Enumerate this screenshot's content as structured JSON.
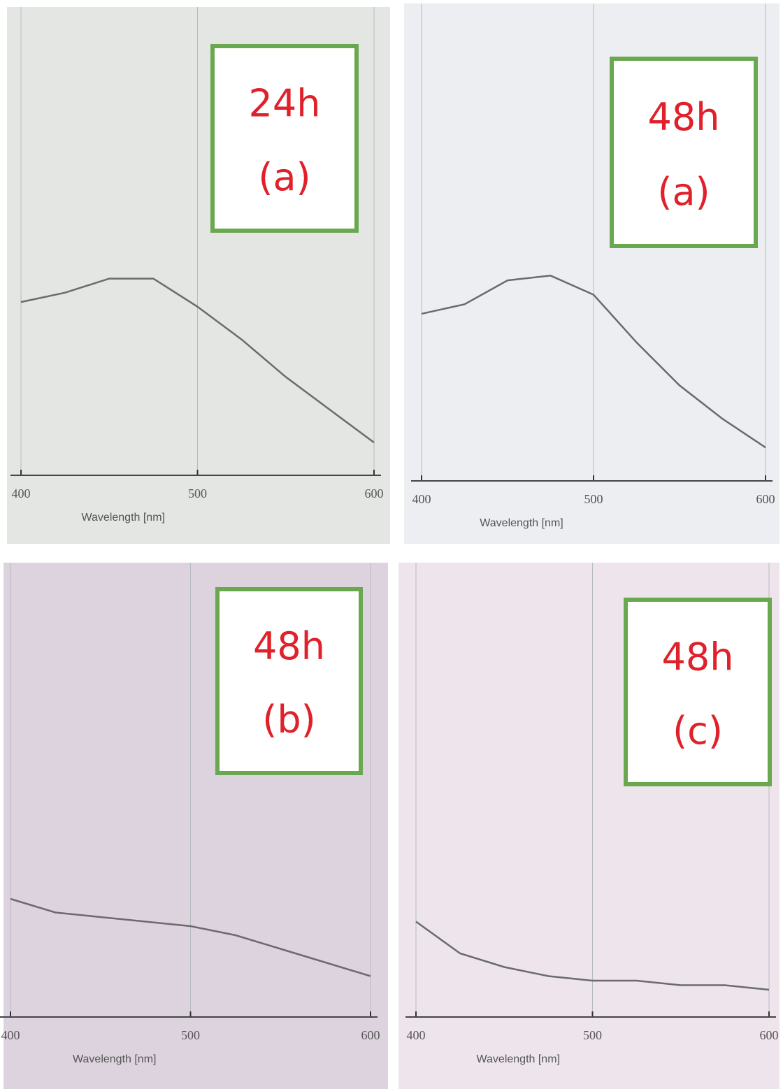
{
  "chart_data": [
    {
      "type": "line",
      "title": "24h",
      "subtitle": "(a)",
      "x_label": "Wavelength [nm]",
      "x": [
        400,
        425,
        450,
        475,
        500,
        525,
        550,
        575,
        600
      ],
      "series": [
        {
          "color": "#6b6b6b",
          "values": [
            0.37,
            0.39,
            0.42,
            0.42,
            0.36,
            0.29,
            0.21,
            0.14,
            0.07
          ]
        }
      ],
      "xlim": [
        400,
        600
      ],
      "xticks": [
        400,
        500,
        600
      ],
      "ylim": [
        0,
        1
      ],
      "grid": true
    },
    {
      "type": "line",
      "title": "48h",
      "subtitle": "(a)",
      "x_label": "Wavelength [nm]",
      "x": [
        400,
        425,
        450,
        475,
        500,
        525,
        550,
        575,
        600
      ],
      "series": [
        {
          "color": "#6b6b6b",
          "values": [
            0.35,
            0.37,
            0.42,
            0.43,
            0.39,
            0.29,
            0.2,
            0.13,
            0.07
          ]
        }
      ],
      "xlim": [
        400,
        600
      ],
      "xticks": [
        400,
        500,
        600
      ],
      "ylim": [
        0,
        1
      ],
      "grid": true
    },
    {
      "type": "line",
      "title": "48h",
      "subtitle": "(b)",
      "x_label": "Wavelength [nm]",
      "x": [
        400,
        425,
        450,
        475,
        500,
        525,
        550,
        575,
        600
      ],
      "series": [
        {
          "color": "#6b6b6b",
          "values": [
            0.26,
            0.23,
            0.22,
            0.21,
            0.2,
            0.18,
            0.15,
            0.12,
            0.09
          ]
        }
      ],
      "xlim": [
        400,
        600
      ],
      "xticks": [
        400,
        500,
        600
      ],
      "ylim": [
        0,
        1
      ],
      "grid": true
    },
    {
      "type": "line",
      "title": "48h",
      "subtitle": "(c)",
      "x_label": "Wavelength [nm]",
      "x": [
        400,
        425,
        450,
        475,
        500,
        525,
        550,
        575,
        600
      ],
      "series": [
        {
          "color": "#6b6b6b",
          "values": [
            0.21,
            0.14,
            0.11,
            0.09,
            0.08,
            0.08,
            0.07,
            0.07,
            0.06
          ]
        }
      ],
      "xlim": [
        400,
        600
      ],
      "xticks": [
        400,
        500,
        600
      ],
      "ylim": [
        0,
        1
      ],
      "grid": true
    }
  ]
}
